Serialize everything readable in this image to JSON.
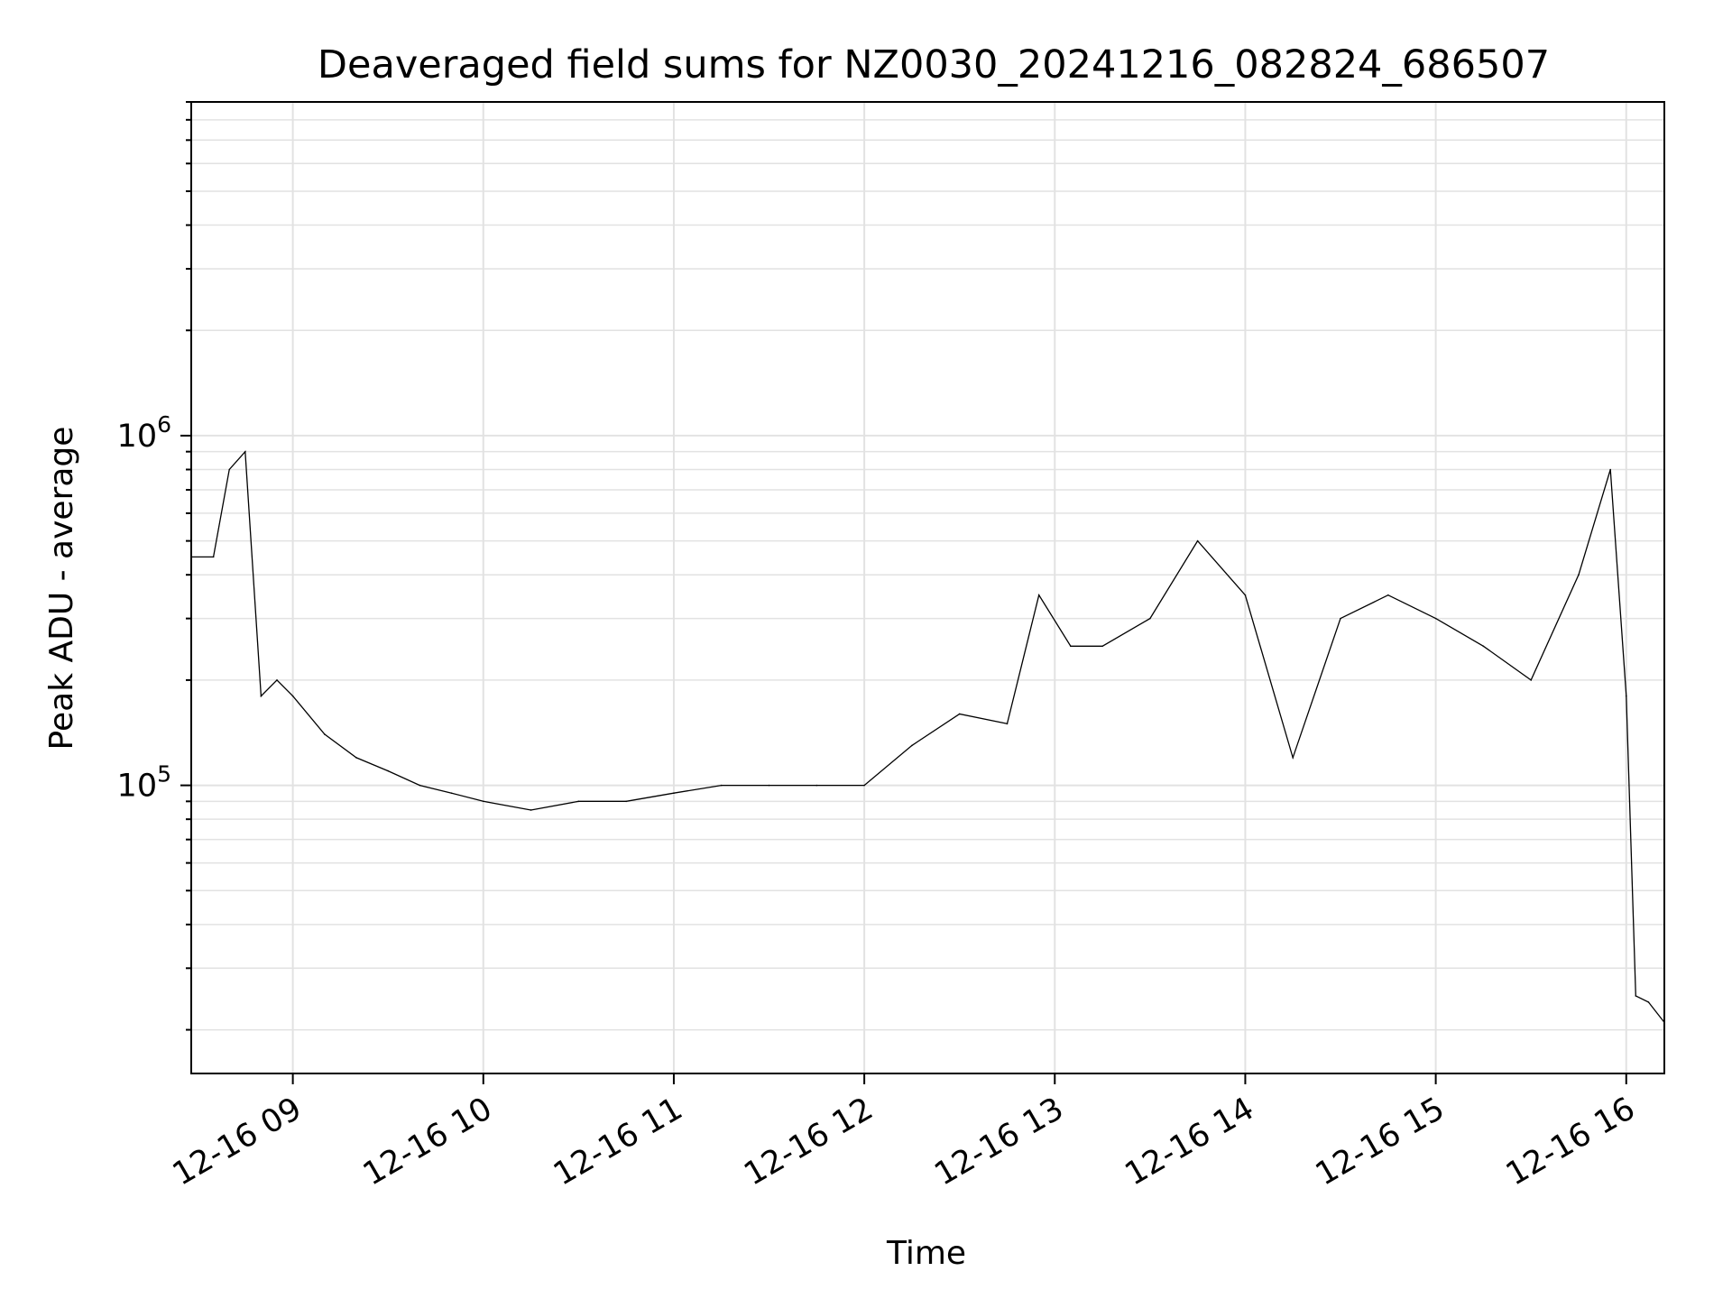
{
  "chart_data": {
    "type": "line",
    "title": "Deaveraged field sums for NZ0030_20241216_082824_686507",
    "xlabel": "Time",
    "ylabel": "Peak ADU - average",
    "yscale": "log",
    "xlim": [
      "2024-12-16 08:28",
      "2024-12-16 16:12"
    ],
    "ylim": [
      15000,
      9000000
    ],
    "grid": true,
    "line_color": "#000000",
    "x_ticks": [
      {
        "value": "2024-12-16 09:00",
        "label": "12-16 09"
      },
      {
        "value": "2024-12-16 10:00",
        "label": "12-16 10"
      },
      {
        "value": "2024-12-16 11:00",
        "label": "12-16 11"
      },
      {
        "value": "2024-12-16 12:00",
        "label": "12-16 12"
      },
      {
        "value": "2024-12-16 13:00",
        "label": "12-16 13"
      },
      {
        "value": "2024-12-16 14:00",
        "label": "12-16 14"
      },
      {
        "value": "2024-12-16 15:00",
        "label": "12-16 15"
      },
      {
        "value": "2024-12-16 16:00",
        "label": "12-16 16"
      }
    ],
    "y_ticks": [
      {
        "value": 100000,
        "base": "10",
        "exp": "5"
      },
      {
        "value": 1000000,
        "base": "10",
        "exp": "6"
      }
    ],
    "series": [
      {
        "x": [
          "2024-12-16 08:28",
          "2024-12-16 08:35",
          "2024-12-16 08:40",
          "2024-12-16 08:45",
          "2024-12-16 08:50",
          "2024-12-16 08:55",
          "2024-12-16 09:00",
          "2024-12-16 09:10",
          "2024-12-16 09:20",
          "2024-12-16 09:30",
          "2024-12-16 09:40",
          "2024-12-16 09:50",
          "2024-12-16 10:00",
          "2024-12-16 10:15",
          "2024-12-16 10:30",
          "2024-12-16 10:45",
          "2024-12-16 11:00",
          "2024-12-16 11:15",
          "2024-12-16 11:30",
          "2024-12-16 11:45",
          "2024-12-16 12:00",
          "2024-12-16 12:15",
          "2024-12-16 12:30",
          "2024-12-16 12:45",
          "2024-12-16 12:55",
          "2024-12-16 13:05",
          "2024-12-16 13:15",
          "2024-12-16 13:30",
          "2024-12-16 13:45",
          "2024-12-16 14:00",
          "2024-12-16 14:15",
          "2024-12-16 14:30",
          "2024-12-16 14:45",
          "2024-12-16 15:00",
          "2024-12-16 15:15",
          "2024-12-16 15:30",
          "2024-12-16 15:45",
          "2024-12-16 15:55",
          "2024-12-16 16:00",
          "2024-12-16 16:03",
          "2024-12-16 16:07",
          "2024-12-16 16:12"
        ],
        "y": [
          450000,
          450000,
          800000,
          900000,
          180000,
          200000,
          180000,
          140000,
          120000,
          110000,
          100000,
          95000,
          90000,
          85000,
          90000,
          90000,
          95000,
          100000,
          100000,
          100000,
          100000,
          130000,
          160000,
          150000,
          350000,
          250000,
          250000,
          300000,
          500000,
          350000,
          120000,
          300000,
          350000,
          300000,
          250000,
          200000,
          400000,
          800000,
          180000,
          25000,
          24000,
          21000
        ]
      }
    ]
  }
}
